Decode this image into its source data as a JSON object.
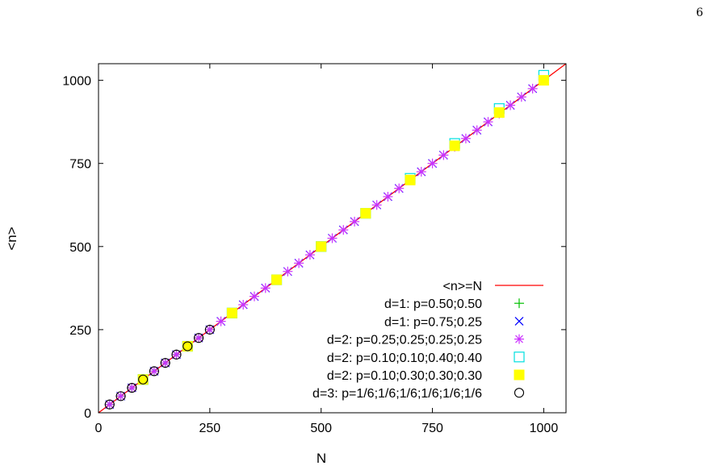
{
  "page_number": "6",
  "chart_data": {
    "type": "scatter",
    "xlabel": "N",
    "ylabel": "<n>",
    "xlim": [
      0,
      1050
    ],
    "ylim": [
      0,
      1050
    ],
    "x_ticks": [
      "0",
      "250",
      "500",
      "750",
      "1000"
    ],
    "y_ticks": [
      "0",
      "250",
      "500",
      "750",
      "1000"
    ],
    "x_tick_values": [
      0,
      250,
      500,
      750,
      1000
    ],
    "y_tick_values": [
      0,
      250,
      500,
      750,
      1000
    ],
    "grid": false,
    "legend_position": "bottom-right",
    "line": {
      "name": "<n>=N",
      "color": "#ff0000",
      "x": [
        0,
        1050
      ],
      "y": [
        0,
        1050
      ]
    },
    "series": [
      {
        "name": "d=1: p=0.50;0.50",
        "marker": "plus",
        "color": "#00c000",
        "x": [
          25,
          50,
          75,
          100,
          125,
          150,
          175,
          200,
          225,
          250
        ],
        "y": [
          25,
          50,
          75,
          100,
          125,
          150,
          175,
          200,
          225,
          250
        ]
      },
      {
        "name": "d=1: p=0.75;0.25",
        "marker": "cross",
        "color": "#0000ff",
        "x": [
          25,
          50,
          75,
          100,
          125,
          150,
          175,
          200,
          225,
          250,
          275,
          300,
          325,
          350,
          375,
          400,
          425,
          450,
          475,
          500,
          525,
          550,
          575,
          600,
          625,
          650,
          675,
          700,
          725,
          750,
          775,
          800,
          825,
          850,
          875,
          900,
          925,
          950,
          975,
          1000
        ],
        "y": [
          25,
          50,
          75,
          100,
          125,
          150,
          175,
          200,
          225,
          250,
          275,
          300,
          325,
          350,
          375,
          400,
          425,
          450,
          475,
          500,
          525,
          550,
          575,
          600,
          625,
          650,
          675,
          700,
          725,
          750,
          775,
          800,
          825,
          850,
          875,
          900,
          925,
          950,
          975,
          1000
        ]
      },
      {
        "name": "d=2: p=0.25;0.25;0.25;0.25",
        "marker": "star",
        "color": "#cc33ff",
        "x": [
          25,
          50,
          75,
          100,
          125,
          150,
          175,
          200,
          225,
          250,
          275,
          300,
          325,
          350,
          375,
          400,
          425,
          450,
          475,
          500,
          525,
          550,
          575,
          600,
          625,
          650,
          675,
          700,
          725,
          750,
          775,
          800,
          825,
          850,
          875,
          900,
          925,
          950,
          975,
          1000
        ],
        "y": [
          25,
          50,
          75,
          100,
          125,
          150,
          175,
          200,
          225,
          250,
          275,
          300,
          325,
          350,
          375,
          400,
          425,
          450,
          475,
          500,
          525,
          550,
          575,
          600,
          625,
          650,
          675,
          700,
          725,
          750,
          775,
          800,
          825,
          850,
          875,
          900,
          925,
          950,
          975,
          1000
        ]
      },
      {
        "name": "d=2: p=0.10;0.10;0.40;0.40",
        "marker": "box",
        "color": "#00e0e0",
        "x": [
          100,
          200,
          300,
          400,
          500,
          600,
          700,
          800,
          900,
          1000
        ],
        "y": [
          100,
          200,
          300,
          400,
          500,
          600,
          705,
          810,
          915,
          1015
        ]
      },
      {
        "name": "d=2: p=0.10;0.30;0.30;0.30",
        "marker": "filled-box",
        "color": "#ffff00",
        "x": [
          100,
          200,
          300,
          400,
          500,
          600,
          700,
          800,
          900,
          1000
        ],
        "y": [
          100,
          200,
          300,
          400,
          500,
          600,
          700,
          803,
          903,
          1000
        ]
      },
      {
        "name": "d=3: p=1/6;1/6;1/6;1/6;1/6;1/6",
        "marker": "circle",
        "color": "#000000",
        "x": [
          25,
          50,
          75,
          100,
          125,
          150,
          175,
          200,
          225,
          250
        ],
        "y": [
          25,
          50,
          75,
          100,
          125,
          150,
          175,
          200,
          225,
          250
        ]
      }
    ]
  }
}
